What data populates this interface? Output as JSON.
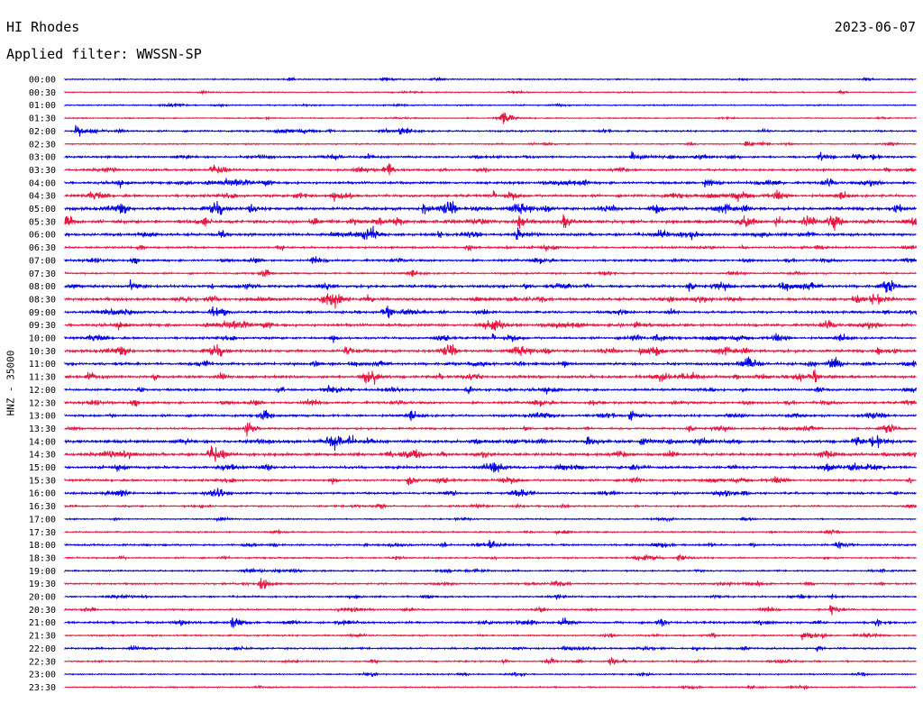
{
  "header": {
    "station": "HI Rhodes",
    "date": "2023-06-07",
    "filter": "Applied filter: WWSSN-SP"
  },
  "chart_data": {
    "type": "line",
    "ylabel": "HNZ - 35000",
    "row_labels": [
      "00:00",
      "00:30",
      "01:00",
      "01:30",
      "02:00",
      "02:30",
      "03:00",
      "03:30",
      "04:00",
      "04:30",
      "05:00",
      "05:30",
      "06:00",
      "06:30",
      "07:00",
      "07:30",
      "08:00",
      "08:30",
      "09:00",
      "09:30",
      "10:00",
      "10:30",
      "11:00",
      "11:30",
      "12:00",
      "12:30",
      "13:00",
      "13:30",
      "14:00",
      "14:30",
      "15:00",
      "15:30",
      "16:00",
      "16:30",
      "17:00",
      "17:30",
      "18:00",
      "18:30",
      "19:00",
      "19:30",
      "20:00",
      "20:30",
      "21:00",
      "21:30",
      "22:00",
      "22:30",
      "23:00",
      "23:30"
    ],
    "colors": [
      "#0000e6",
      "#e6163f"
    ],
    "x_range_minutes": [
      0,
      30
    ],
    "noise_level": [
      0.6,
      0.5,
      0.6,
      0.5,
      0.9,
      0.6,
      1.2,
      1.2,
      1.4,
      1.5,
      1.8,
      1.9,
      1.6,
      1.1,
      1.2,
      0.9,
      1.6,
      1.7,
      1.4,
      1.6,
      1.3,
      1.6,
      1.5,
      1.6,
      1.3,
      1.3,
      1.3,
      1.1,
      1.8,
      1.7,
      1.5,
      1.2,
      1.2,
      0.9,
      0.6,
      0.7,
      1.0,
      0.8,
      0.8,
      0.9,
      0.9,
      0.8,
      1.2,
      0.8,
      1.0,
      0.8,
      0.7,
      0.6
    ],
    "events": [
      {
        "row": 3,
        "minute": 15.4,
        "amplitude": 14
      },
      {
        "row": 4,
        "minute": 0.4,
        "amplitude": 11
      },
      {
        "row": 4,
        "minute": 11.8,
        "amplitude": 10
      },
      {
        "row": 5,
        "minute": 24.0,
        "amplitude": 5
      },
      {
        "row": 6,
        "minute": 20.0,
        "amplitude": 10
      },
      {
        "row": 6,
        "minute": 26.6,
        "amplitude": 7
      },
      {
        "row": 8,
        "minute": 22.6,
        "amplitude": 12
      },
      {
        "row": 10,
        "minute": 6.5,
        "amplitude": 8
      },
      {
        "row": 10,
        "minute": 12.6,
        "amplitude": 9
      },
      {
        "row": 11,
        "minute": 11.6,
        "amplitude": 8
      },
      {
        "row": 11,
        "minute": 16.0,
        "amplitude": 9
      },
      {
        "row": 11,
        "minute": 17.6,
        "amplitude": 8
      },
      {
        "row": 11,
        "minute": 26.0,
        "amplitude": 8
      },
      {
        "row": 12,
        "minute": 15.9,
        "amplitude": 9
      },
      {
        "row": 14,
        "minute": 8.7,
        "amplitude": 8
      },
      {
        "row": 16,
        "minute": 2.3,
        "amplitude": 9
      },
      {
        "row": 17,
        "minute": 5.1,
        "amplitude": 7
      },
      {
        "row": 17,
        "minute": 9.1,
        "amplitude": 7
      },
      {
        "row": 19,
        "minute": 20.1,
        "amplitude": 9
      },
      {
        "row": 20,
        "minute": 20.8,
        "amplitude": 9
      },
      {
        "row": 21,
        "minute": 9.9,
        "amplitude": 9
      },
      {
        "row": 21,
        "minute": 20.3,
        "amplitude": 12
      },
      {
        "row": 21,
        "minute": 28.6,
        "amplitude": 8
      },
      {
        "row": 22,
        "minute": 24.1,
        "amplitude": 7
      },
      {
        "row": 23,
        "minute": 0.8,
        "amplitude": 10
      },
      {
        "row": 23,
        "minute": 26.4,
        "amplitude": 9
      },
      {
        "row": 25,
        "minute": 18.5,
        "amplitude": 7
      },
      {
        "row": 26,
        "minute": 19.9,
        "amplitude": 9
      },
      {
        "row": 27,
        "minute": 6.4,
        "amplitude": 8
      },
      {
        "row": 28,
        "minute": 18.4,
        "amplitude": 10
      },
      {
        "row": 28,
        "minute": 20.3,
        "amplitude": 8
      },
      {
        "row": 30,
        "minute": 20.0,
        "amplitude": 8
      },
      {
        "row": 31,
        "minute": 12.1,
        "amplitude": 9
      },
      {
        "row": 36,
        "minute": 15.0,
        "amplitude": 10
      },
      {
        "row": 36,
        "minute": 27.2,
        "amplitude": 9
      },
      {
        "row": 37,
        "minute": 21.6,
        "amplitude": 7
      },
      {
        "row": 39,
        "minute": 6.9,
        "amplitude": 12
      },
      {
        "row": 41,
        "minute": 27.0,
        "amplitude": 9
      },
      {
        "row": 42,
        "minute": 5.9,
        "amplitude": 12
      },
      {
        "row": 43,
        "minute": 26.0,
        "amplitude": 10
      },
      {
        "row": 45,
        "minute": 19.2,
        "amplitude": 7
      }
    ]
  }
}
